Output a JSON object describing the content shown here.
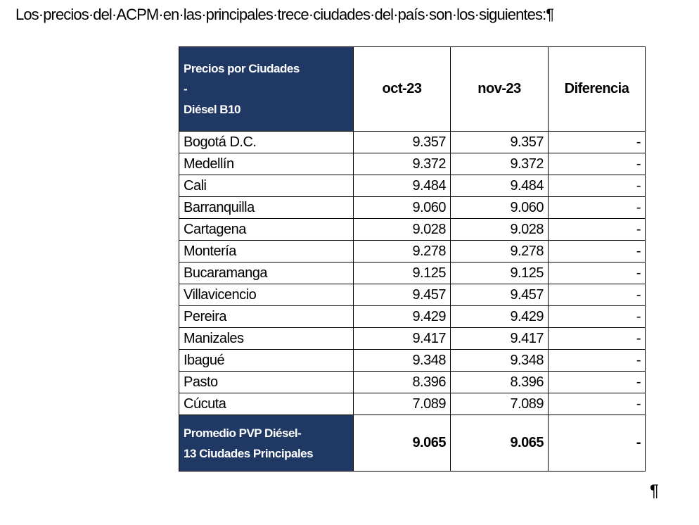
{
  "document": {
    "intro": "Los·precios·del·ACPM·en·las·principales·trece·ciudades·del·país·son·los·siguientes:¶",
    "table": {
      "header": {
        "lines": [
          "Precios por Ciudades",
          "-",
          "Diésel B10"
        ],
        "columns": [
          "oct-23",
          "nov-23",
          "Diferencia"
        ]
      },
      "rows": [
        [
          "Bogotá D.C.",
          "9.357",
          "9.357",
          "-"
        ],
        [
          "Medellín",
          "9.372",
          "9.372",
          "-"
        ],
        [
          "Cali",
          "9.484",
          "9.484",
          "-"
        ],
        [
          "Barranquilla",
          "9.060",
          "9.060",
          "-"
        ],
        [
          "Cartagena",
          "9.028",
          "9.028",
          "-"
        ],
        [
          "Montería",
          "9.278",
          "9.278",
          "-"
        ],
        [
          "Bucaramanga",
          "9.125",
          "9.125",
          "-"
        ],
        [
          "Villavicencio",
          "9.457",
          "9.457",
          "-"
        ],
        [
          "Pereira",
          "9.429",
          "9.429",
          "-"
        ],
        [
          "Manizales",
          "9.417",
          "9.417",
          "-"
        ],
        [
          "Ibagué",
          "9.348",
          "9.348",
          "-"
        ],
        [
          "Pasto",
          "8.396",
          "8.396",
          "-"
        ],
        [
          "Cúcuta",
          "7.089",
          "7.089",
          "-"
        ]
      ],
      "footer": {
        "lines": [
          "Promedio PVP Diésel-",
          "13 Ciudades Principales"
        ],
        "values": [
          "9.065",
          "9.065",
          "-"
        ]
      }
    },
    "end_mark": "¶"
  }
}
